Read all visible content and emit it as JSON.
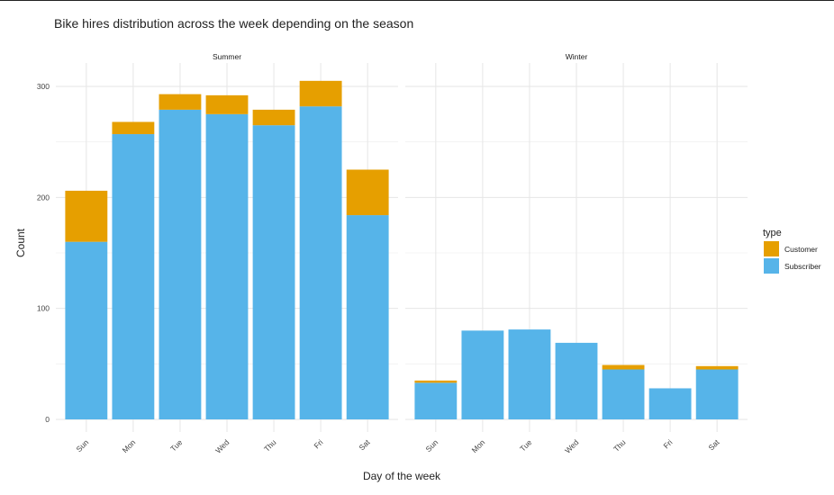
{
  "chart_data": {
    "type": "bar",
    "stacked": true,
    "title": "Bike hires distribution across the week depending on the season",
    "xlabel": "Day of the week",
    "ylabel": "Count",
    "ylim": [
      0,
      320
    ],
    "yticks": [
      0,
      100,
      200,
      300
    ],
    "grid": true,
    "legend": {
      "title": "type",
      "position": "right",
      "entries": [
        "Customer",
        "Subscriber"
      ]
    },
    "colors": {
      "Customer": "#E69F00",
      "Subscriber": "#56B4E9"
    },
    "categories": [
      "Sun",
      "Mon",
      "Tue",
      "Wed",
      "Thu",
      "Fri",
      "Sat"
    ],
    "panels": [
      {
        "name": "Summer",
        "series": [
          {
            "name": "Subscriber",
            "values": [
              160,
              257,
              279,
              275,
              265,
              282,
              184
            ]
          },
          {
            "name": "Customer",
            "values": [
              46,
              11,
              14,
              17,
              14,
              23,
              41
            ]
          }
        ]
      },
      {
        "name": "Winter",
        "series": [
          {
            "name": "Subscriber",
            "values": [
              33,
              80,
              81,
              69,
              45,
              28,
              45
            ]
          },
          {
            "name": "Customer",
            "values": [
              2,
              0,
              0,
              0,
              4,
              0,
              3
            ]
          }
        ]
      }
    ]
  }
}
